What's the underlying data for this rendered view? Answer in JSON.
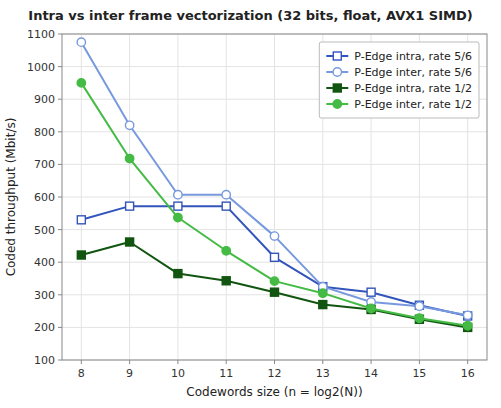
{
  "chart_data": {
    "type": "line",
    "title": "Intra vs inter frame vectorization (32 bits, float, AVX1 SIMD)",
    "xlabel": "Codewords size (n = log2(N))",
    "ylabel": "Coded throughput (Mbit/s)",
    "x": [
      8,
      9,
      10,
      11,
      12,
      13,
      14,
      15,
      16
    ],
    "series": [
      {
        "name": "P-Edge intra, rate 5/6",
        "color": "#3355bb",
        "marker": "square-open",
        "values": [
          530,
          572,
          572,
          572,
          415,
          325,
          308,
          268,
          235
        ]
      },
      {
        "name": "P-Edge inter, rate 5/6",
        "color": "#7799dd",
        "marker": "circle-open",
        "values": [
          1075,
          820,
          607,
          607,
          480,
          325,
          278,
          265,
          237
        ]
      },
      {
        "name": "P-Edge intra, rate 1/2",
        "color": "#115511",
        "marker": "square",
        "values": [
          422,
          462,
          365,
          343,
          308,
          270,
          255,
          225,
          200
        ]
      },
      {
        "name": "P-Edge inter, rate 1/2",
        "color": "#44bb44",
        "marker": "circle",
        "values": [
          950,
          718,
          537,
          435,
          342,
          305,
          258,
          228,
          205
        ]
      }
    ],
    "xlim": [
      7.6,
      16.4
    ],
    "ylim": [
      100,
      1100
    ],
    "xticks": [
      8,
      9,
      10,
      11,
      12,
      13,
      14,
      15,
      16
    ],
    "yticks": [
      100,
      200,
      300,
      400,
      500,
      600,
      700,
      800,
      900,
      1000,
      1100
    ],
    "grid": true,
    "legend": "upper right"
  }
}
